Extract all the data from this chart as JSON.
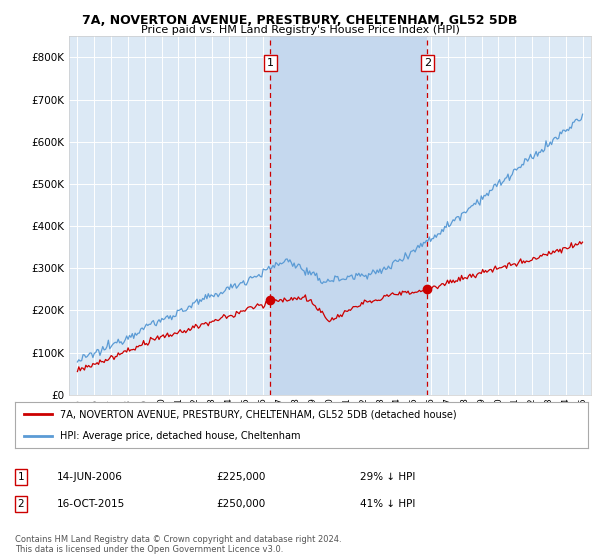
{
  "title_line1": "7A, NOVERTON AVENUE, PRESTBURY, CHELTENHAM, GL52 5DB",
  "title_line2": "Price paid vs. HM Land Registry's House Price Index (HPI)",
  "background_color": "#ffffff",
  "plot_bg_color": "#dce9f5",
  "highlight_color": "#c5d8ee",
  "grid_color": "#ffffff",
  "hpi_color": "#5b9bd5",
  "price_color": "#cc0000",
  "dashed_line_color": "#cc0000",
  "sale1_date_x": 2006.45,
  "sale1_price": 225000,
  "sale2_date_x": 2015.79,
  "sale2_price": 250000,
  "ylim_max": 850000,
  "ylim_min": 0,
  "xlim_min": 1994.5,
  "xlim_max": 2025.5,
  "legend_entry1": "7A, NOVERTON AVENUE, PRESTBURY, CHELTENHAM, GL52 5DB (detached house)",
  "legend_entry2": "HPI: Average price, detached house, Cheltenham",
  "annotation1_text": "14-JUN-2006",
  "annotation1_price": "£225,000",
  "annotation1_hpi": "29% ↓ HPI",
  "annotation2_text": "16-OCT-2015",
  "annotation2_price": "£250,000",
  "annotation2_hpi": "41% ↓ HPI",
  "copyright_text": "Contains HM Land Registry data © Crown copyright and database right 2024.\nThis data is licensed under the Open Government Licence v3.0."
}
